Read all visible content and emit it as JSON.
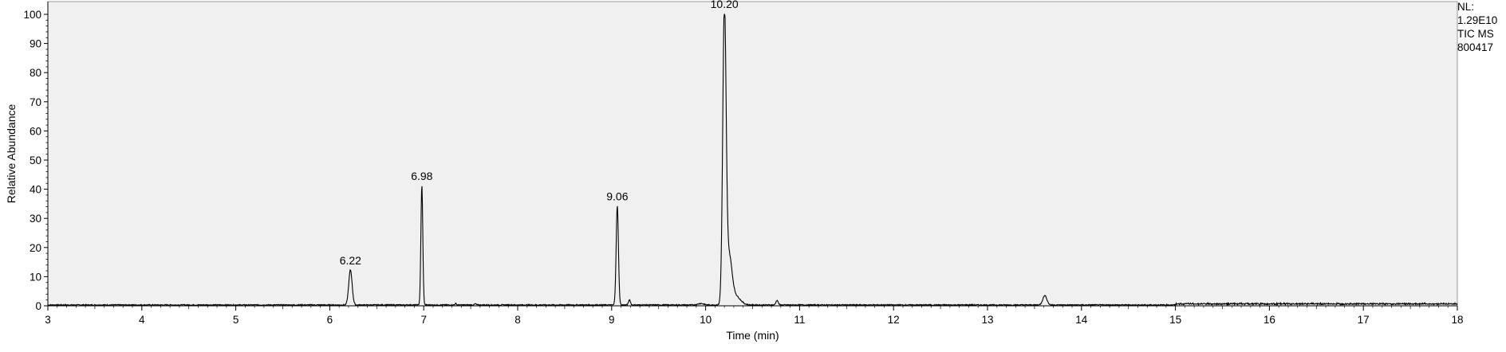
{
  "chart_data": {
    "type": "line",
    "xlabel": "Time (min)",
    "ylabel": "Relative Abundance",
    "xlim": [
      3,
      18
    ],
    "ylim": [
      0,
      100
    ],
    "x_ticks": [
      3,
      4,
      5,
      6,
      7,
      8,
      9,
      10,
      11,
      12,
      13,
      14,
      15,
      16,
      17,
      18
    ],
    "y_ticks": [
      0,
      10,
      20,
      30,
      40,
      50,
      60,
      70,
      80,
      90,
      100
    ],
    "grid": false,
    "colors": {
      "background": "#f0f0f0",
      "trace": "#000000",
      "axis": "#000000"
    },
    "info": [
      "NL:",
      "1.29E10",
      "TIC  MS",
      "800417"
    ],
    "peak_labels": [
      {
        "x": 6.22,
        "y": 12,
        "label": "6.22"
      },
      {
        "x": 6.98,
        "y": 41,
        "label": "6.98"
      },
      {
        "x": 9.06,
        "y": 34,
        "label": "9.06"
      },
      {
        "x": 10.2,
        "y": 100,
        "label": "10.20"
      }
    ],
    "peaks": [
      {
        "x": 6.22,
        "y": 12,
        "width": 0.018
      },
      {
        "x": 6.98,
        "y": 41,
        "width": 0.01
      },
      {
        "x": 9.06,
        "y": 34,
        "width": 0.012
      },
      {
        "x": 9.19,
        "y": 1.8,
        "width": 0.01
      },
      {
        "x": 10.2,
        "y": 100,
        "width": 0.018
      },
      {
        "x": 10.25,
        "y": 16,
        "width": 0.03
      },
      {
        "x": 10.32,
        "y": 3,
        "width": 0.05
      },
      {
        "x": 10.76,
        "y": 1.6,
        "width": 0.012
      },
      {
        "x": 13.61,
        "y": 3.2,
        "width": 0.022
      },
      {
        "x": 7.34,
        "y": 0.5,
        "width": 0.008
      },
      {
        "x": 7.55,
        "y": 0.4,
        "width": 0.008
      },
      {
        "x": 9.95,
        "y": 0.5,
        "width": 0.03
      }
    ],
    "baseline": 0.3
  }
}
